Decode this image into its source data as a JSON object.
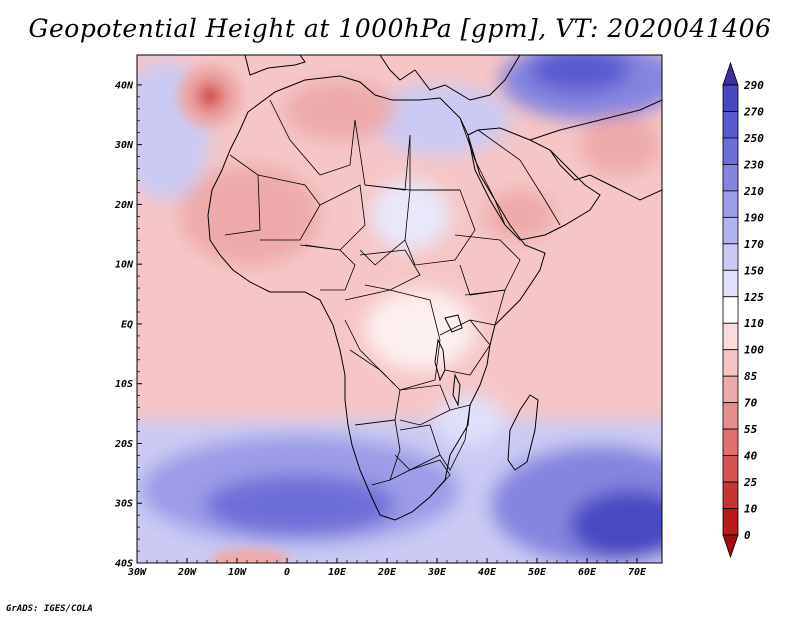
{
  "title": "Geopotential Height at 1000hPa [gpm], VT: 2020041406",
  "credit": "GrADS: IGES/COLA",
  "map": {
    "type": "filled-contour",
    "variable": "Geopotential Height",
    "level": "1000hPa",
    "units": "gpm",
    "valid_time": "2020041406",
    "lon_range": [
      -30,
      75
    ],
    "lat_range": [
      -40,
      45
    ],
    "x_ticks": [
      "30W",
      "20W",
      "10W",
      "0",
      "10E",
      "20E",
      "30E",
      "40E",
      "50E",
      "60E",
      "70E"
    ],
    "y_ticks": [
      "40N",
      "30N",
      "20N",
      "10N",
      "EQ",
      "10S",
      "20S",
      "30S",
      "40S"
    ],
    "features": [
      {
        "name": "high-sw-atlantic",
        "lon": 0,
        "lat": -32,
        "value": 200
      },
      {
        "name": "high-indian-ocean",
        "lon": 70,
        "lat": -35,
        "value": 270
      },
      {
        "name": "high-east-mediterranean",
        "lon": 55,
        "lat": 43,
        "value": 215
      },
      {
        "name": "low-north-atlantic",
        "lon": -16,
        "lat": 37,
        "value": 45
      },
      {
        "name": "low-south-atlantic",
        "lon": -10,
        "lat": -40,
        "value": 70
      },
      {
        "name": "low-sahara",
        "lon": -5,
        "lat": 20,
        "value": 75
      },
      {
        "name": "low-arabia",
        "lon": 46,
        "lat": 17,
        "value": 75
      }
    ]
  },
  "colorbar": {
    "levels": [
      "290",
      "270",
      "250",
      "230",
      "210",
      "190",
      "170",
      "150",
      "125",
      "110",
      "100",
      "85",
      "70",
      "55",
      "40",
      "25",
      "10",
      "0"
    ],
    "colors": [
      "#3c2fa6",
      "#4848c2",
      "#5a5ad0",
      "#6e6ed8",
      "#8585e0",
      "#9c9ce8",
      "#b3b3ee",
      "#cacaf4",
      "#e0e0fa",
      "#ffffff",
      "#fadcdc",
      "#f5c4c4",
      "#eeaaaa",
      "#e68e8e",
      "#de7070",
      "#d45252",
      "#c73434",
      "#b81a1a",
      "#a00e0e"
    ]
  }
}
